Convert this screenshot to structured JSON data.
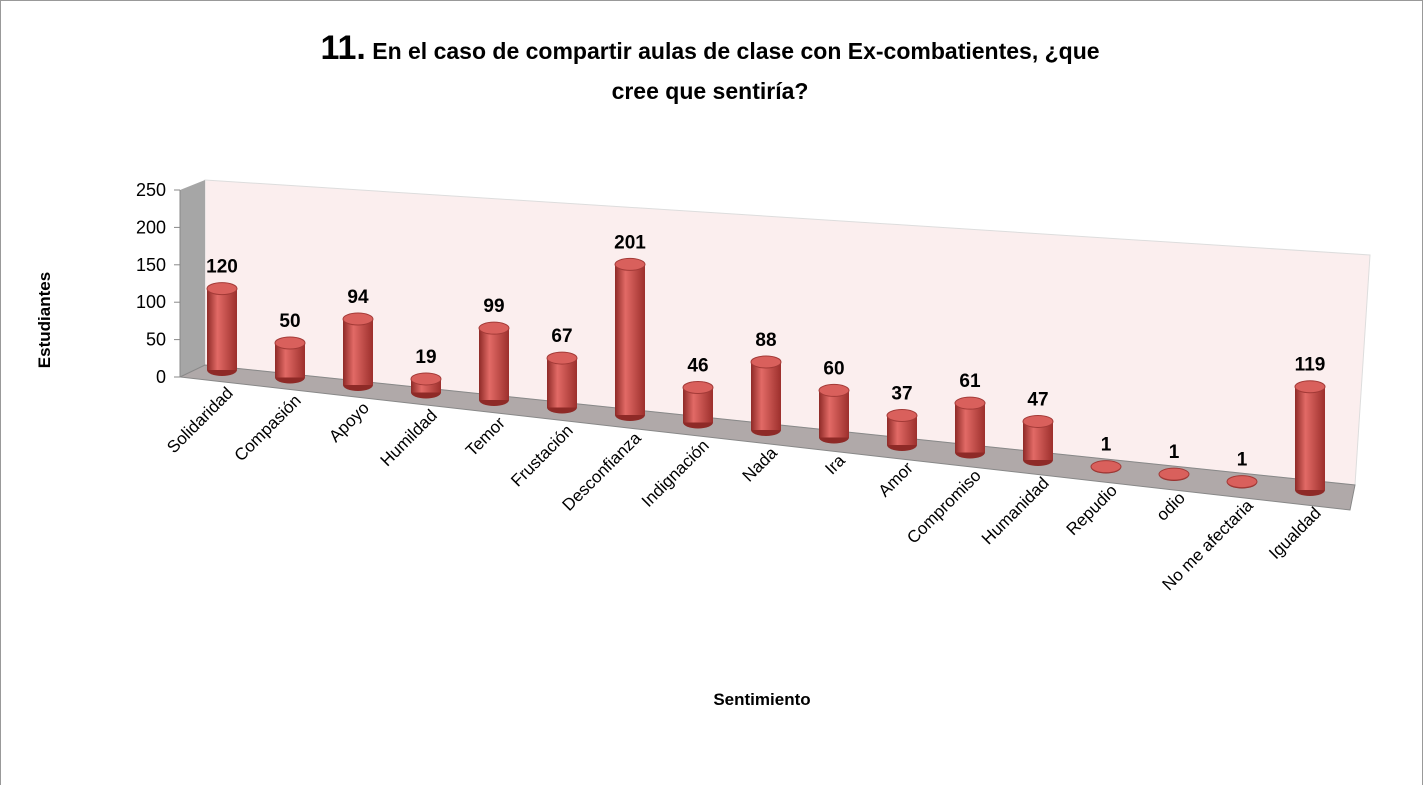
{
  "chart_data": {
    "type": "bar3d",
    "title": {
      "number": "11.",
      "text": "En el caso de compartir aulas de clase con Ex-combatientes, ¿que cree que sentiría?"
    },
    "x_label": "Sentimiento",
    "y_label": "Estudiantes",
    "categories": [
      "Solidaridad",
      "Compasión",
      "Apoyo",
      "Humildad",
      "Temor",
      "Frustación",
      "Desconfianza",
      "Indignación",
      "Nada",
      "Ira",
      "Amor",
      "Compromiso",
      "Humanidad",
      "Repudio",
      "odio",
      "No me afectaria",
      "Igualdad"
    ],
    "values": [
      120,
      50,
      94,
      19,
      99,
      67,
      201,
      46,
      88,
      60,
      37,
      61,
      47,
      1,
      1,
      1,
      119
    ],
    "color": "#c0504d",
    "ylim": [
      0,
      250
    ],
    "yticks": [
      0,
      50,
      100,
      150,
      200,
      250
    ]
  }
}
